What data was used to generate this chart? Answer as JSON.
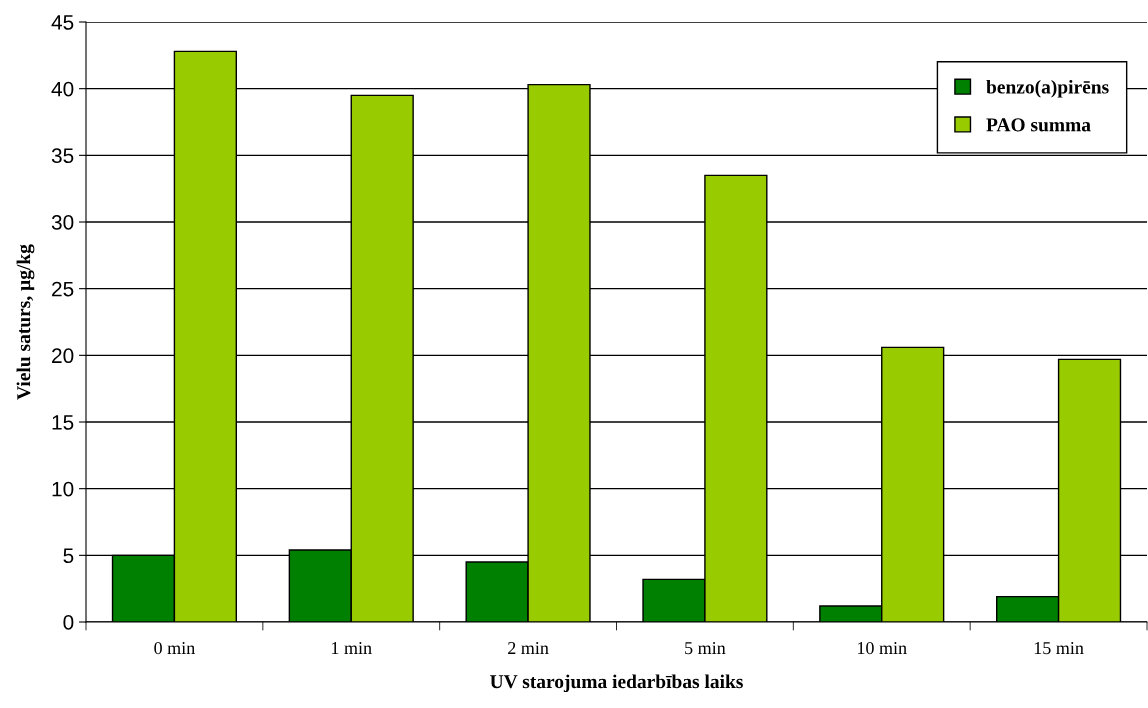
{
  "chart_data": {
    "type": "bar",
    "xlabel": "UV starojuma iedarbības laiks",
    "ylabel": "Vielu saturs, µg/kg",
    "categories": [
      "0 min",
      "1 min",
      "2 min",
      "5 min",
      "10 min",
      "15 min"
    ],
    "series": [
      {
        "name": "benzo(a)pirēns",
        "color": "#008000",
        "values": [
          5.0,
          5.4,
          4.5,
          3.2,
          1.2,
          1.9
        ]
      },
      {
        "name": "PAO summa",
        "color": "#99cc00",
        "values": [
          42.8,
          39.5,
          40.3,
          33.5,
          20.6,
          19.7
        ]
      }
    ],
    "ylim": [
      0,
      45
    ],
    "yticks": [
      0,
      5,
      10,
      15,
      20,
      25,
      30,
      35,
      40,
      45
    ],
    "grid": "y",
    "legend": "top right"
  }
}
